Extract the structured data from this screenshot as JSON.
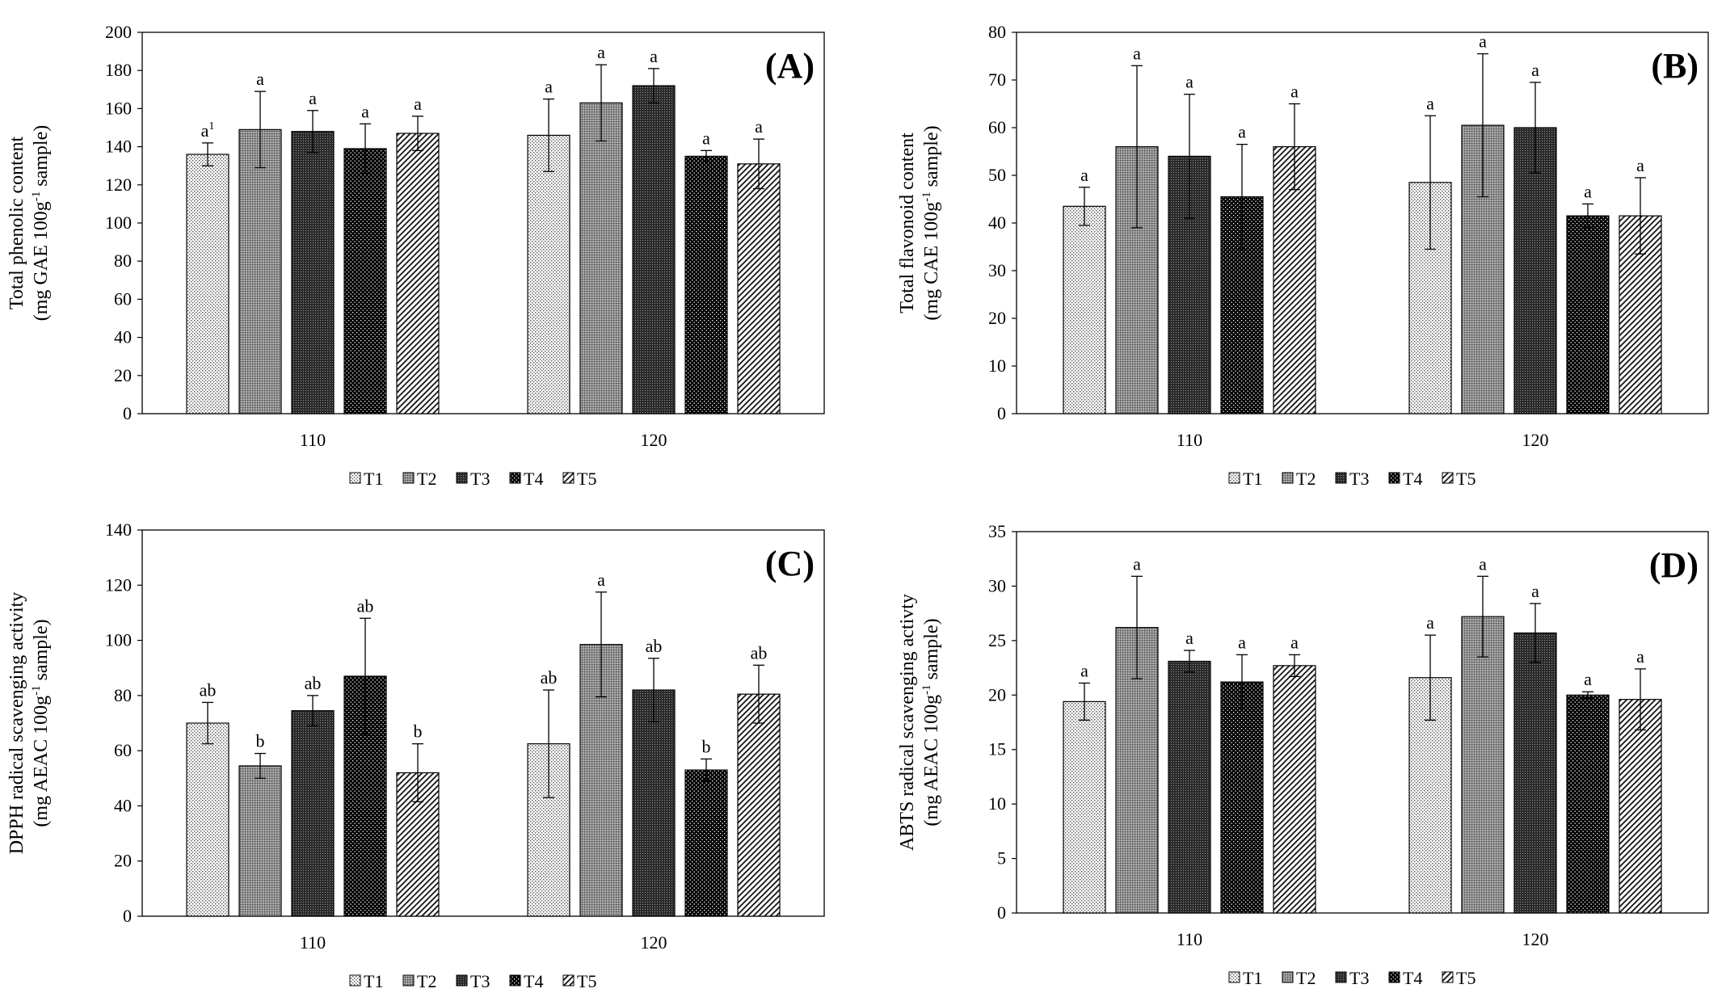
{
  "chart_data": [
    {
      "type": "bar",
      "panel_label": "(A)",
      "title": "",
      "categories": [
        "110",
        "120"
      ],
      "ylabel_line1": "Total phenolic content",
      "ylabel_line2": "(mg GAE 100g",
      "ylabel_sup": "-1",
      "ylabel_tail": " sample)",
      "ylim": [
        0,
        200
      ],
      "ytick_step": 20,
      "series": [
        {
          "name": "T1",
          "values": [
            136,
            146
          ],
          "errors": [
            6,
            19
          ],
          "letters": [
            "a1",
            "a"
          ]
        },
        {
          "name": "T2",
          "values": [
            149,
            163
          ],
          "errors": [
            20,
            20
          ],
          "letters": [
            "a",
            "a"
          ]
        },
        {
          "name": "T3",
          "values": [
            148,
            172
          ],
          "errors": [
            11,
            9
          ],
          "letters": [
            "a",
            "a"
          ]
        },
        {
          "name": "T4",
          "values": [
            139,
            135
          ],
          "errors": [
            13,
            3
          ],
          "letters": [
            "a",
            "a"
          ]
        },
        {
          "name": "T5",
          "values": [
            147,
            131
          ],
          "errors": [
            9,
            13
          ],
          "letters": [
            "a",
            "a"
          ]
        }
      ]
    },
    {
      "type": "bar",
      "panel_label": "(B)",
      "title": "",
      "categories": [
        "110",
        "120"
      ],
      "ylabel_line1": "Total flavonoid content",
      "ylabel_line2": "(mg CAE 100g",
      "ylabel_sup": "-1",
      "ylabel_tail": " sample)",
      "ylim": [
        0,
        80
      ],
      "ytick_step": 10,
      "series": [
        {
          "name": "T1",
          "values": [
            43.5,
            48.5
          ],
          "errors": [
            4,
            14
          ],
          "letters": [
            "a",
            "a"
          ]
        },
        {
          "name": "T2",
          "values": [
            56,
            60.5
          ],
          "errors": [
            17,
            15
          ],
          "letters": [
            "a",
            "a"
          ]
        },
        {
          "name": "T3",
          "values": [
            54,
            60
          ],
          "errors": [
            13,
            9.5
          ],
          "letters": [
            "a",
            "a"
          ]
        },
        {
          "name": "T4",
          "values": [
            45.5,
            41.5
          ],
          "errors": [
            11,
            2.5
          ],
          "letters": [
            "a",
            "a"
          ]
        },
        {
          "name": "T5",
          "values": [
            56,
            41.5
          ],
          "errors": [
            9,
            8
          ],
          "letters": [
            "a",
            "a"
          ]
        }
      ]
    },
    {
      "type": "bar",
      "panel_label": "(C)",
      "title": "",
      "categories": [
        "110",
        "120"
      ],
      "ylabel_line1": "DPPH radical scavenging activity",
      "ylabel_line2": "(mg AEAC 100g",
      "ylabel_sup": "-1",
      "ylabel_tail": " sample)",
      "ylim": [
        0,
        140
      ],
      "ytick_step": 20,
      "series": [
        {
          "name": "T1",
          "values": [
            70,
            62.5
          ],
          "errors": [
            7.5,
            19.5
          ],
          "letters": [
            "ab",
            "ab"
          ]
        },
        {
          "name": "T2",
          "values": [
            54.5,
            98.5
          ],
          "errors": [
            4.5,
            19
          ],
          "letters": [
            "b",
            "a"
          ]
        },
        {
          "name": "T3",
          "values": [
            74.5,
            82
          ],
          "errors": [
            5.5,
            11.5
          ],
          "letters": [
            "ab",
            "ab"
          ]
        },
        {
          "name": "T4",
          "values": [
            87,
            53
          ],
          "errors": [
            21,
            4
          ],
          "letters": [
            "ab",
            "b"
          ]
        },
        {
          "name": "T5",
          "values": [
            52,
            80.5
          ],
          "errors": [
            10.5,
            10.5
          ],
          "letters": [
            "b",
            "ab"
          ]
        }
      ]
    },
    {
      "type": "bar",
      "panel_label": "(D)",
      "title": "",
      "categories": [
        "110",
        "120"
      ],
      "ylabel_line1": "ABTS radical scavenging activty",
      "ylabel_line2": "(mg AEAC 100g",
      "ylabel_sup": "-1",
      "ylabel_tail": " sample)",
      "ylim": [
        0,
        35
      ],
      "ytick_step": 5,
      "series": [
        {
          "name": "T1",
          "values": [
            19.4,
            21.6
          ],
          "errors": [
            1.7,
            3.9
          ],
          "letters": [
            "a",
            "a"
          ]
        },
        {
          "name": "T2",
          "values": [
            26.2,
            27.2
          ],
          "errors": [
            4.7,
            3.7
          ],
          "letters": [
            "a",
            "a"
          ]
        },
        {
          "name": "T3",
          "values": [
            23.1,
            25.7
          ],
          "errors": [
            1.0,
            2.7
          ],
          "letters": [
            "a",
            "a"
          ]
        },
        {
          "name": "T4",
          "values": [
            21.2,
            20.0
          ],
          "errors": [
            2.5,
            0.3
          ],
          "letters": [
            "a",
            "a"
          ]
        },
        {
          "name": "T5",
          "values": [
            22.7,
            19.6
          ],
          "errors": [
            1.0,
            2.8
          ],
          "letters": [
            "a",
            "a"
          ]
        }
      ]
    }
  ],
  "legend": [
    "T1",
    "T2",
    "T3",
    "T4",
    "T5"
  ]
}
